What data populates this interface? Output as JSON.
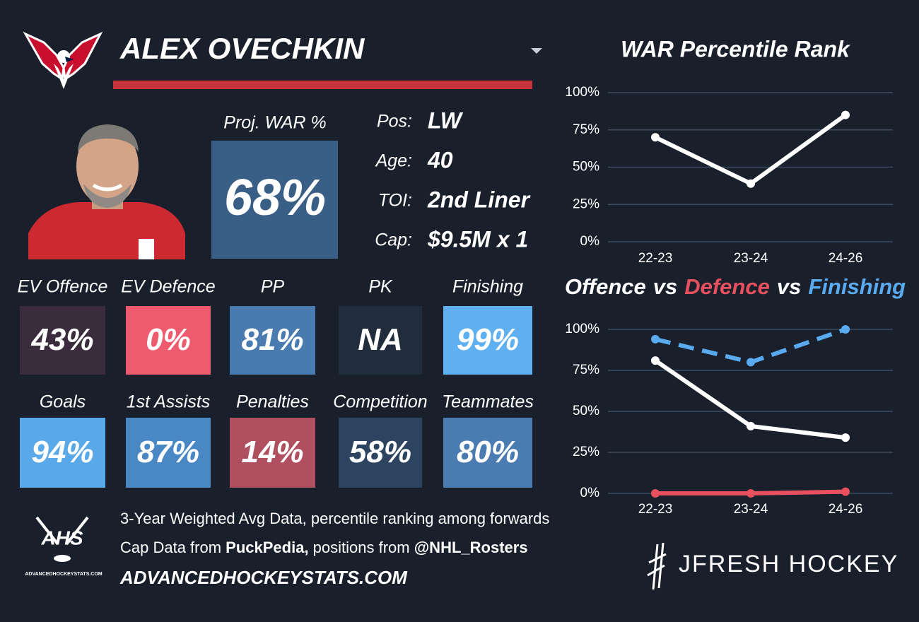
{
  "header": {
    "player": "ALEX OVECHKIN"
  },
  "projection": {
    "label": "Proj. WAR %",
    "value": "68%",
    "color": "#3a5f86"
  },
  "bio": [
    {
      "label": "Pos:",
      "value": "LW"
    },
    {
      "label": "Age:",
      "value": "40"
    },
    {
      "label": "TOI:",
      "value": "2nd Liner"
    },
    {
      "label": "Cap:",
      "value": "$9.5M x 1"
    }
  ],
  "tiles": [
    {
      "label": "EV Offence",
      "value": "43%",
      "color": "#3b2c3d"
    },
    {
      "label": "EV Defence",
      "value": "0%",
      "color": "#ee5a6e"
    },
    {
      "label": "PP",
      "value": "81%",
      "color": "#4a7bb0"
    },
    {
      "label": "PK",
      "value": "NA",
      "color": "#212d3c"
    },
    {
      "label": "Finishing",
      "value": "99%",
      "color": "#5fb0f0"
    },
    {
      "label": "Goals",
      "value": "94%",
      "color": "#59a8e8"
    },
    {
      "label": "1st Assists",
      "value": "87%",
      "color": "#4a88c5"
    },
    {
      "label": "Penalties",
      "value": "14%",
      "color": "#b04f60"
    },
    {
      "label": "Competition",
      "value": "58%",
      "color": "#2c445f"
    },
    {
      "label": "Teammates",
      "value": "80%",
      "color": "#4a7cb1"
    }
  ],
  "notes": {
    "line1": "3-Year Weighted Avg Data, percentile ranking among forwards",
    "line2": [
      {
        "text": "Cap Data from ",
        "bold": false
      },
      {
        "text": "PuckPedia,",
        "bold": true
      },
      {
        "text": " positions from ",
        "bold": false
      },
      {
        "text": "@NHL_Rosters",
        "bold": true
      }
    ],
    "website": "ADVANCEDHOCKEYSTATS.COM"
  },
  "logos": {
    "ahs": "AHS",
    "ahs_site": "ADVANCEDHOCKEYSTATS.COM",
    "brand": "JFRESH HOCKEY"
  },
  "chart_data": [
    {
      "type": "line",
      "title": "WAR Percentile Rank",
      "categories": [
        "22-23",
        "23-24",
        "24-26"
      ],
      "series": [
        {
          "color": "#ffffff",
          "values": [
            70,
            39,
            85
          ]
        }
      ],
      "ylim": [
        0,
        100
      ],
      "yticks": [
        {
          "value": 0,
          "label": "0%"
        },
        {
          "value": 25,
          "label": "25%"
        },
        {
          "value": 50,
          "label": "50%"
        },
        {
          "value": 75,
          "label": "75%"
        },
        {
          "value": 100,
          "label": "100%"
        }
      ],
      "grid": true
    },
    {
      "type": "line",
      "title_separator": "vs",
      "categories": [
        "22-23",
        "23-24",
        "24-26"
      ],
      "series": [
        {
          "name": "Offence",
          "color": "#ffffff",
          "values": [
            81,
            41,
            34
          ]
        },
        {
          "name": "Defence",
          "color": "#e8505f",
          "values": [
            0,
            0,
            1
          ]
        },
        {
          "name": "Finishing",
          "color": "#5aaaf0",
          "dashed": true,
          "values": [
            94,
            80,
            100
          ]
        }
      ],
      "ylim": [
        0,
        100
      ],
      "yticks": [
        {
          "value": 0,
          "label": "0%"
        },
        {
          "value": 25,
          "label": "25%"
        },
        {
          "value": 50,
          "label": "50%"
        },
        {
          "value": 75,
          "label": "75%"
        },
        {
          "value": 100,
          "label": "100%"
        }
      ],
      "grid": true
    }
  ]
}
